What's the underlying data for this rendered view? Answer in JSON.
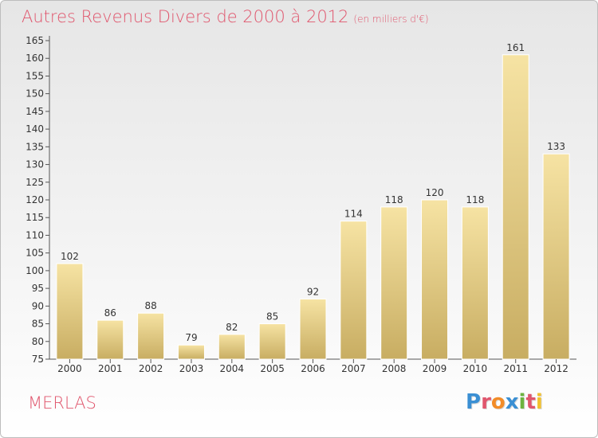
{
  "chart_data": {
    "type": "bar",
    "title": "Autres Revenus Divers de 2000 à 2012",
    "unit": "(en milliers d'€)",
    "categories": [
      "2000",
      "2001",
      "2002",
      "2003",
      "2004",
      "2005",
      "2006",
      "2007",
      "2008",
      "2009",
      "2010",
      "2011",
      "2012"
    ],
    "values": [
      102,
      86,
      88,
      79,
      82,
      85,
      92,
      114,
      118,
      120,
      118,
      161,
      133
    ],
    "ylim": [
      75,
      165
    ],
    "yticks": [
      75,
      80,
      85,
      90,
      95,
      100,
      105,
      110,
      115,
      120,
      125,
      130,
      135,
      140,
      145,
      150,
      155,
      160,
      165
    ],
    "grid": false,
    "bar_color": "#e9cf86"
  },
  "place": "MERLAS",
  "brand": {
    "text": "Proxiti",
    "letter_colors": [
      "#3a8fd3",
      "#e0566d",
      "#f28c28",
      "#3a8fd3",
      "#6db33f",
      "#e0566d",
      "#f2c12e"
    ]
  },
  "title_color": "#e0566d"
}
